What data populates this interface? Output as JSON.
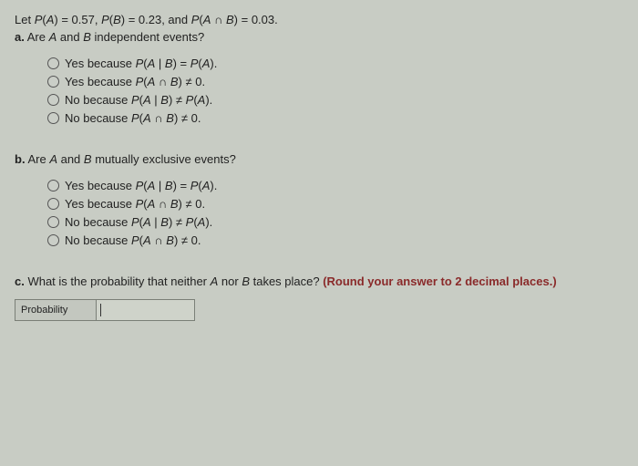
{
  "background_color": "#c8ccc4",
  "text_color": "#222222",
  "font_family": "Arial",
  "base_fontsize": 13,
  "given": {
    "prefix": "Let ",
    "pa_label_html": "P(A) = 0.57",
    "pb_label_html": "P(B) = 0.23",
    "pab_label_html": "P(A ∩ B) = 0.03",
    "suffix": "."
  },
  "part_a": {
    "label": "a.",
    "question_plain": "Are A and B independent events?",
    "options": [
      "Yes because P(A | B) = P(A).",
      "Yes because P(A ∩ B) ≠ 0.",
      "No because P(A | B) ≠ P(A).",
      "No because P(A ∩ B) ≠ 0."
    ]
  },
  "part_b": {
    "label": "b.",
    "question_plain": "Are A and B mutually exclusive events?",
    "options": [
      "Yes because P(A | B) = P(A).",
      "Yes because P(A ∩ B) ≠ 0.",
      "No because P(A | B) ≠ P(A).",
      "No because P(A ∩ B) ≠ 0."
    ]
  },
  "part_c": {
    "label": "c.",
    "question_plain": "What is the probability that neither A nor B takes place?",
    "rounding_note": "(Round your answer to 2 decimal places.)",
    "answer_label": "Probability",
    "answer_value": ""
  },
  "rounding_color": "#8a2a2a"
}
